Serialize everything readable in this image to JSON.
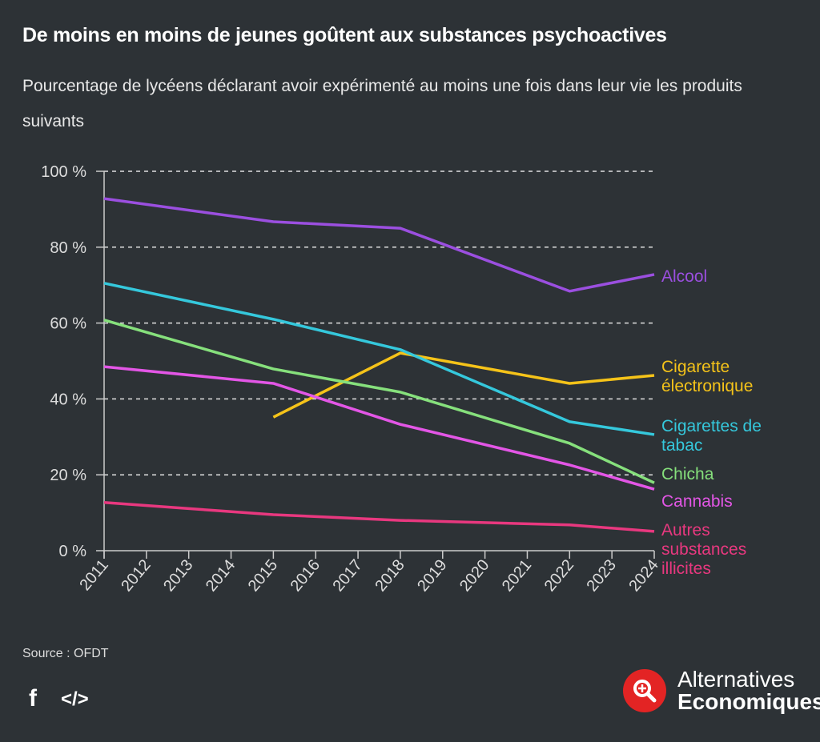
{
  "title": "De moins en moins de jeunes goûtent aux substances psychoactives",
  "subtitle": "Pourcentage de lycéens déclarant avoir expérimenté au moins une fois dans leur vie les produits suivants",
  "source": "Source : OFDT",
  "share": {
    "facebook_icon": "f",
    "embed_icon": "</>"
  },
  "logo": {
    "line1": "Alternatives",
    "line2": "Economiques",
    "color": "#e32424"
  },
  "chart_data": {
    "type": "line",
    "title": "",
    "xlabel": "",
    "ylabel": "",
    "x_ticks": [
      "2011",
      "2012",
      "2013",
      "2014",
      "2015",
      "2016",
      "2017",
      "2018",
      "2019",
      "2020",
      "2021",
      "2022",
      "2023",
      "2024"
    ],
    "y_ticks": [
      "0 %",
      "20 %",
      "40 %",
      "60 %",
      "80 %",
      "100 %"
    ],
    "ylim": [
      0,
      100
    ],
    "xlim": [
      2011,
      2024
    ],
    "grid": "horizontal dashed",
    "legend": "direct labels right",
    "series": [
      {
        "name": "Alcool",
        "color": "#9b4fe0",
        "x": [
          2011,
          2015,
          2018,
          2022,
          2024
        ],
        "values": [
          92.8,
          86.7,
          85.0,
          68.4,
          72.8
        ]
      },
      {
        "name": "Cigarette électronique",
        "color": "#f5c319",
        "x": [
          2015,
          2018,
          2022,
          2024
        ],
        "values": [
          35.2,
          52.1,
          44.1,
          46.2
        ]
      },
      {
        "name": "Cigarettes de tabac",
        "color": "#35c8dc",
        "x": [
          2011,
          2015,
          2018,
          2022,
          2024
        ],
        "values": [
          70.5,
          61.0,
          53.0,
          34.0,
          30.6
        ]
      },
      {
        "name": "Chicha",
        "color": "#86e07c",
        "x": [
          2011,
          2015,
          2018,
          2022,
          2024
        ],
        "values": [
          60.8,
          47.9,
          41.8,
          28.3,
          17.9
        ]
      },
      {
        "name": "Cannabis",
        "color": "#e356e6",
        "x": [
          2011,
          2015,
          2018,
          2022,
          2024
        ],
        "values": [
          48.5,
          44.1,
          33.3,
          22.6,
          16.2
        ]
      },
      {
        "name": "Autres substances illicites",
        "color": "#e8387f",
        "x": [
          2011,
          2015,
          2018,
          2022,
          2024
        ],
        "values": [
          12.7,
          9.5,
          8.0,
          6.8,
          5.1
        ]
      }
    ],
    "series_label_lines": [
      [
        "Alcool"
      ],
      [
        "Cigarette",
        "électronique"
      ],
      [
        "Cigarettes de",
        "tabac"
      ],
      [
        "Chicha"
      ],
      [
        "Cannabis"
      ],
      [
        "Autres",
        "substances",
        "illicites"
      ]
    ]
  }
}
